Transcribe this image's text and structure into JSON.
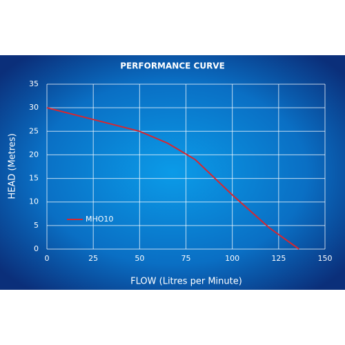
{
  "chart_data": {
    "type": "line",
    "title": "PERFORMANCE CURVE",
    "x_label": "FLOW (Litres per Minute)",
    "y_label": "HEAD (Metres)",
    "x": [
      0,
      25,
      50,
      65,
      80,
      100,
      120,
      136
    ],
    "series": [
      {
        "name": "MHO10",
        "color": "#d9262e",
        "values": [
          30,
          27.5,
          25,
          22.5,
          19,
          11.5,
          4.5,
          0
        ]
      }
    ],
    "xlim": [
      0,
      150
    ],
    "xticks": [
      0,
      25,
      50,
      75,
      100,
      125,
      150
    ],
    "ylim": [
      0,
      35
    ],
    "yticks": [
      0,
      5,
      10,
      15,
      20,
      25,
      30,
      35
    ],
    "grid": true,
    "legend": "left"
  }
}
